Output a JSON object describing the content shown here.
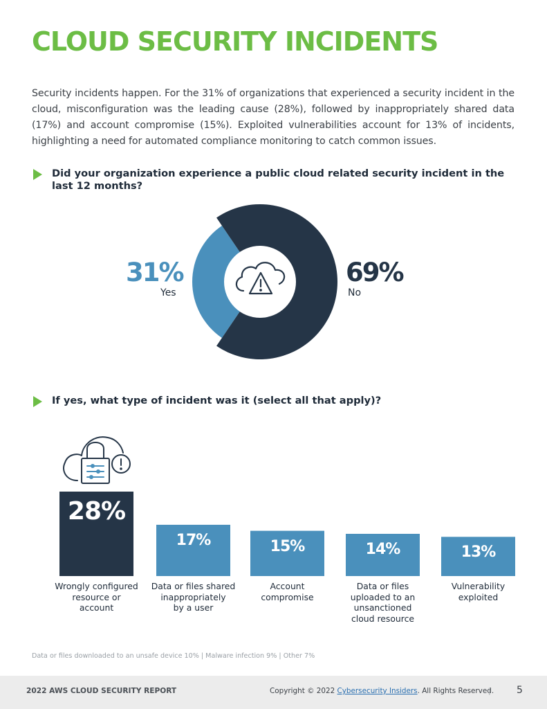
{
  "page": {
    "title": "CLOUD SECURITY INCIDENTS",
    "intro": "Security incidents happen. For the 31% of organizations that experienced a security incident in the cloud, misconfiguration was the leading cause (28%), followed by inappropriately shared data (17%) and account compromise (15%). Exploited vulnerabilities account for 13% of incidents, highlighting a need for automated compliance monitoring to catch common issues.",
    "question1": "Did your organization experience a public cloud related security incident in the last 12 months?",
    "question2": "If yes, what type of incident was it (select all that apply)?",
    "footnote": "Data or files downloaded to an unsafe device 10%  |  Malware infection 9%  |  Other 7%"
  },
  "footer": {
    "report": "2022 AWS CLOUD SECURITY REPORT",
    "copyright_prefix": "Copyright © 2022 ",
    "copyright_link": "Cybersecurity Insiders",
    "copyright_suffix": ". All Rights Reserved.",
    "separator": "|",
    "page_number": "5"
  },
  "colors": {
    "accent_green": "#6cbd45",
    "navy": "#253547",
    "blue": "#4a90bc"
  },
  "icons": {
    "donut_center": "cloud-warning-icon",
    "bar_top": "cloud-lock-alert-icon"
  },
  "chart_data": [
    {
      "type": "pie",
      "categories": [
        "Yes",
        "No"
      ],
      "values": [
        31,
        69
      ],
      "display": [
        "31%",
        "69%"
      ],
      "colors": [
        "#4a90bc",
        "#253547"
      ]
    },
    {
      "type": "bar",
      "categories": [
        "Wrongly configured resource or account",
        "Data or files shared inappropriately by a user",
        "Account compromise",
        "Data or files uploaded to an unsanctioned cloud resource",
        "Vulnerability exploited"
      ],
      "category_lines": [
        [
          "Wrongly configured",
          "resource or",
          "account"
        ],
        [
          "Data or files shared",
          "inappropriately",
          "by a user"
        ],
        [
          "Account",
          "compromise"
        ],
        [
          "Data or files",
          "uploaded to an",
          "unsanctioned",
          "cloud resource"
        ],
        [
          "Vulnerability",
          "exploited"
        ]
      ],
      "values": [
        28,
        17,
        15,
        14,
        13
      ],
      "display": [
        "28%",
        "17%",
        "15%",
        "14%",
        "13%"
      ],
      "colors": [
        "#253547",
        "#4a90bc",
        "#4a90bc",
        "#4a90bc",
        "#4a90bc"
      ]
    }
  ]
}
